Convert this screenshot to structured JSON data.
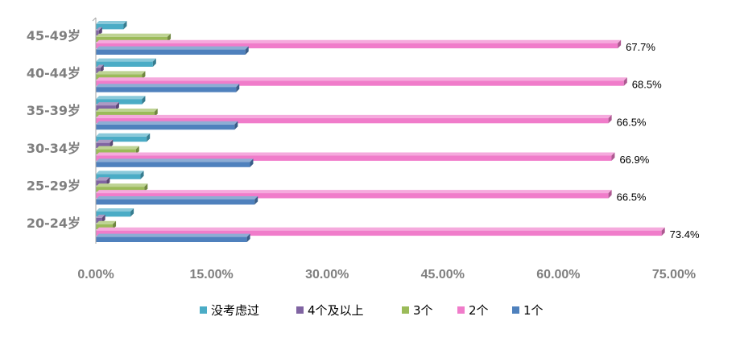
{
  "chart_data": {
    "type": "bar",
    "orientation": "horizontal",
    "categories": [
      "20-24岁",
      "25-29岁",
      "30-34岁",
      "35-39岁",
      "40-44岁",
      "45-49岁"
    ],
    "series": [
      {
        "name": "没考虑过",
        "color": "#4bacc6",
        "values": [
          4.5,
          5.8,
          6.6,
          6.0,
          7.4,
          3.6
        ]
      },
      {
        "name": "4个及以上",
        "color": "#8064a2",
        "values": [
          0.8,
          1.4,
          1.8,
          2.6,
          0.6,
          0.4
        ]
      },
      {
        "name": "3个",
        "color": "#9bbb59",
        "values": [
          2.2,
          6.3,
          5.2,
          7.6,
          6.0,
          9.3
        ]
      },
      {
        "name": "2个",
        "color": "#f07cca",
        "values": [
          73.4,
          66.5,
          66.9,
          66.5,
          68.5,
          67.7
        ]
      },
      {
        "name": "1个",
        "color": "#4f81bd",
        "values": [
          19.6,
          20.6,
          20.0,
          18.0,
          18.2,
          19.4
        ]
      }
    ],
    "data_labels": {
      "series": "2个",
      "texts": [
        "73.4%",
        "66.5%",
        "66.9%",
        "66.5%",
        "68.5%",
        "67.7%"
      ]
    },
    "x_ticks": [
      "0.00%",
      "15.00%",
      "30.00%",
      "45.00%",
      "60.00%",
      "75.00%"
    ],
    "xlim": [
      0,
      75
    ],
    "legend_position": "bottom",
    "grid": false
  }
}
